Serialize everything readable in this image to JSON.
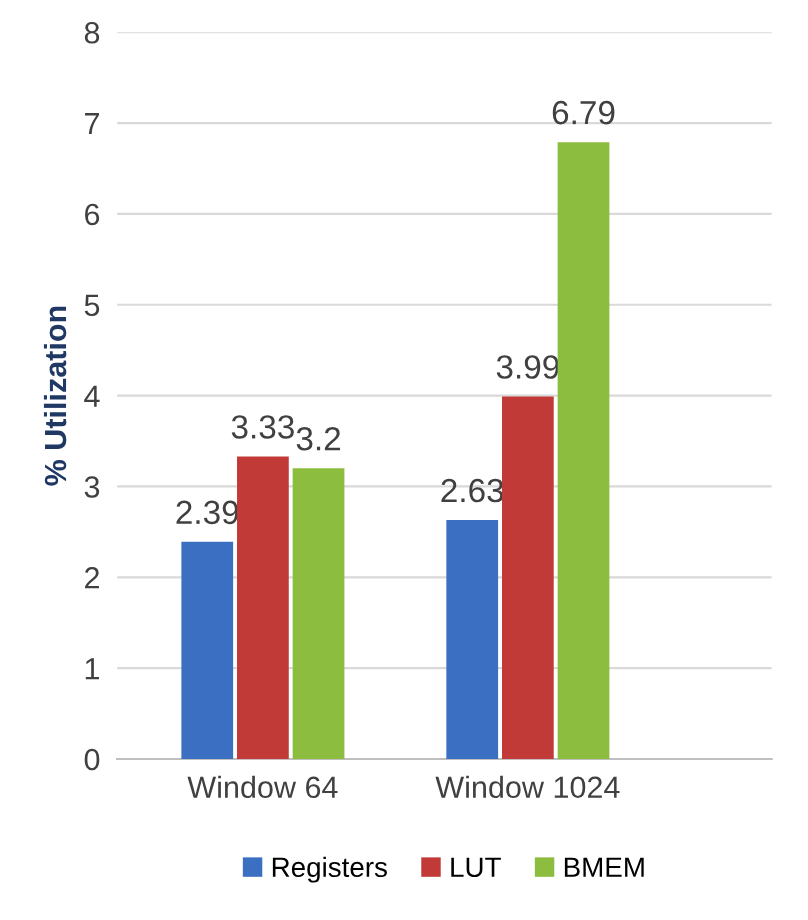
{
  "chart_data": {
    "type": "bar",
    "ylabel": "% Utilization",
    "categories": [
      "Window 64",
      "Window 1024"
    ],
    "series": [
      {
        "name": "Registers",
        "color": "#3b6fc2",
        "values": [
          2.39,
          2.63
        ]
      },
      {
        "name": "LUT",
        "color": "#c23a38",
        "values": [
          3.33,
          3.99
        ]
      },
      {
        "name": "BMEM",
        "color": "#8dbd3e",
        "values": [
          3.2,
          6.79
        ]
      }
    ],
    "ylim": [
      0,
      8
    ],
    "yticks": [
      0,
      1,
      2,
      3,
      4,
      5,
      6,
      7,
      8
    ],
    "grid": "y",
    "legend": "bottom",
    "data_labels": true
  }
}
